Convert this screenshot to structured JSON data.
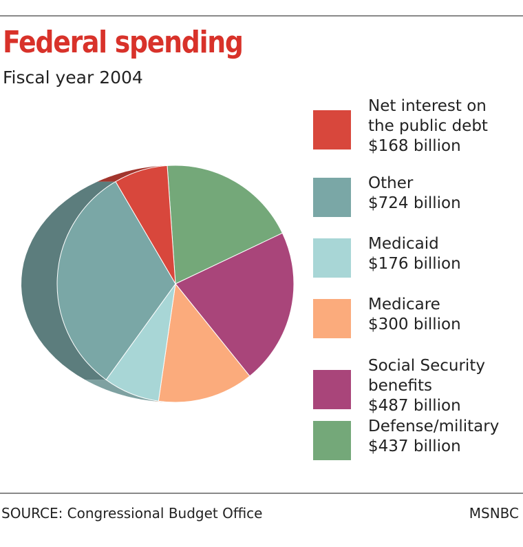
{
  "header": {
    "title": "Federal spending",
    "subtitle": "Fiscal year 2004"
  },
  "chart_data": {
    "type": "pie",
    "title": "Federal spending",
    "subtitle": "Fiscal year 2004",
    "unit": "billion",
    "slices": [
      {
        "label_lines": [
          "Net interest on",
          "the public debt",
          "$168 billion"
        ],
        "name": "Net interest on the public debt",
        "value": 168,
        "color": "#d8473c"
      },
      {
        "label_lines": [
          "Other",
          "$724 billion"
        ],
        "name": "Other",
        "value": 724,
        "color": "#7aa7a6"
      },
      {
        "label_lines": [
          "Medicaid",
          "$176 billion"
        ],
        "name": "Medicaid",
        "value": 176,
        "color": "#a8d6d6"
      },
      {
        "label_lines": [
          "Medicare",
          "$300 billion"
        ],
        "name": "Medicare",
        "value": 300,
        "color": "#fbab7c"
      },
      {
        "label_lines": [
          "Social Security",
          "benefits",
          "$487 billion"
        ],
        "name": "Social Security benefits",
        "value": 487,
        "color": "#a9457a"
      },
      {
        "label_lines": [
          "Defense/military",
          "$437 billion"
        ],
        "name": "Defense/military",
        "value": 437,
        "color": "#74a879"
      }
    ]
  },
  "footer": {
    "source": "SOURCE: Congressional Budget Office",
    "credit": "MSNBC"
  }
}
